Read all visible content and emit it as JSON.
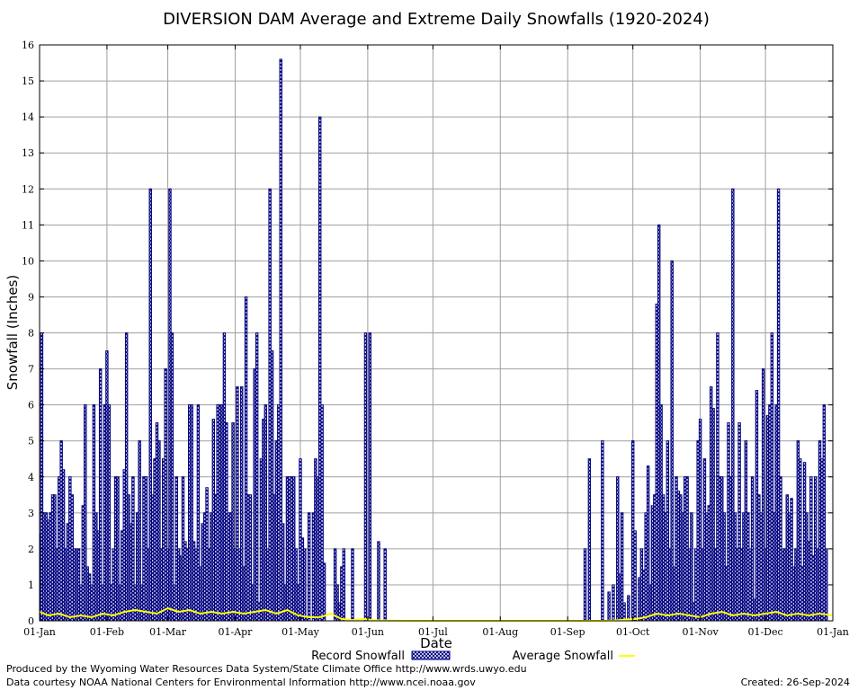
{
  "chart_data": {
    "type": "bar",
    "title": "DIVERSION DAM Average and Extreme Daily Snowfalls (1920-2024)",
    "xlabel": "Date",
    "ylabel": "Snowfall (Inches)",
    "ylim": [
      0,
      16
    ],
    "yticks": [
      0,
      1,
      2,
      3,
      4,
      5,
      6,
      7,
      8,
      9,
      10,
      11,
      12,
      13,
      14,
      15,
      16
    ],
    "xlim_days": [
      1,
      366
    ],
    "xticks": [
      {
        "label": "01-Jan",
        "day": 1
      },
      {
        "label": "01-Feb",
        "day": 32
      },
      {
        "label": "01-Mar",
        "day": 60
      },
      {
        "label": "01-Apr",
        "day": 91
      },
      {
        "label": "01-May",
        "day": 121
      },
      {
        "label": "01-Jun",
        "day": 152
      },
      {
        "label": "01-Jul",
        "day": 182
      },
      {
        "label": "01-Aug",
        "day": 213
      },
      {
        "label": "01-Sep",
        "day": 244
      },
      {
        "label": "01-Oct",
        "day": 274
      },
      {
        "label": "01-Nov",
        "day": 305
      },
      {
        "label": "01-Dec",
        "day": 335
      },
      {
        "label": "01-Jan",
        "day": 366
      }
    ],
    "grid": true,
    "legend_position": "bottom",
    "series": [
      {
        "name": "Record Snowfall",
        "style": "bar",
        "color": "#000080",
        "fill_pattern": "crosshatch",
        "x_day_of_year": [
          1,
          2,
          3,
          4,
          5,
          6,
          7,
          8,
          9,
          10,
          11,
          12,
          13,
          14,
          15,
          16,
          17,
          18,
          19,
          20,
          21,
          22,
          23,
          24,
          25,
          26,
          27,
          28,
          29,
          30,
          31,
          32,
          33,
          34,
          35,
          36,
          37,
          38,
          39,
          40,
          41,
          42,
          43,
          44,
          45,
          46,
          47,
          48,
          49,
          50,
          51,
          52,
          53,
          54,
          55,
          56,
          57,
          58,
          59,
          60,
          61,
          62,
          63,
          64,
          65,
          66,
          67,
          68,
          69,
          70,
          71,
          72,
          73,
          74,
          75,
          76,
          77,
          78,
          79,
          80,
          81,
          82,
          83,
          84,
          85,
          86,
          87,
          88,
          89,
          90,
          91,
          92,
          93,
          94,
          95,
          96,
          97,
          98,
          99,
          100,
          101,
          102,
          103,
          104,
          105,
          106,
          107,
          108,
          109,
          110,
          111,
          112,
          113,
          114,
          115,
          116,
          117,
          118,
          119,
          120,
          121,
          122,
          123,
          124,
          125,
          126,
          127,
          128,
          129,
          130,
          131,
          132,
          133,
          134,
          135,
          136,
          137,
          138,
          139,
          140,
          141,
          142,
          143,
          144,
          145,
          146,
          147,
          148,
          149,
          150,
          151,
          152,
          153,
          154,
          155,
          156,
          157,
          158,
          159,
          160,
          161,
          162,
          163,
          164,
          165,
          166,
          167,
          168,
          169,
          170,
          171,
          172,
          173,
          174,
          175,
          176,
          177,
          178,
          179,
          180,
          181,
          182,
          183,
          184,
          185,
          186,
          187,
          188,
          189,
          190,
          191,
          192,
          193,
          194,
          195,
          196,
          197,
          198,
          199,
          200,
          201,
          202,
          203,
          204,
          205,
          206,
          207,
          208,
          209,
          210,
          211,
          212,
          213,
          214,
          215,
          216,
          217,
          218,
          219,
          220,
          221,
          222,
          223,
          224,
          225,
          226,
          227,
          228,
          229,
          230,
          231,
          232,
          233,
          234,
          235,
          236,
          237,
          238,
          239,
          240,
          241,
          242,
          243,
          244,
          245,
          246,
          247,
          248,
          249,
          250,
          251,
          252,
          253,
          254,
          255,
          256,
          257,
          258,
          259,
          260,
          261,
          262,
          263,
          264,
          265,
          266,
          267,
          268,
          269,
          270,
          271,
          272,
          273,
          274,
          275,
          276,
          277,
          278,
          279,
          280,
          281,
          282,
          283,
          284,
          285,
          286,
          287,
          288,
          289,
          290,
          291,
          292,
          293,
          294,
          295,
          296,
          297,
          298,
          299,
          300,
          301,
          302,
          303,
          304,
          305,
          306,
          307,
          308,
          309,
          310,
          311,
          312,
          313,
          314,
          315,
          316,
          317,
          318,
          319,
          320,
          321,
          322,
          323,
          324,
          325,
          326,
          327,
          328,
          329,
          330,
          331,
          332,
          333,
          334,
          335,
          336,
          337,
          338,
          339,
          340,
          341,
          342,
          343,
          344,
          345,
          346,
          347,
          348,
          349,
          350,
          351,
          352,
          353,
          354,
          355,
          356,
          357,
          358,
          359,
          360,
          361,
          362,
          363,
          364,
          365,
          366
        ],
        "values": [
          2.4,
          8,
          3,
          3,
          2.8,
          3,
          3.5,
          3.5,
          2,
          4,
          5,
          4.2,
          2,
          2.7,
          4,
          3.5,
          2,
          2,
          2,
          1,
          3.2,
          6,
          1.5,
          1.3,
          1,
          6,
          3,
          2.5,
          7,
          1,
          6,
          7.5,
          6,
          1,
          2,
          4,
          4,
          1,
          2.5,
          4.2,
          8,
          3.5,
          2.7,
          4,
          1,
          3,
          5,
          1,
          4,
          4,
          2,
          12,
          3.5,
          4.5,
          5.5,
          5,
          2,
          4.5,
          7,
          2,
          12,
          8,
          1,
          4,
          2,
          1.8,
          4,
          2.2,
          2,
          6,
          6,
          2.2,
          2,
          6,
          1.5,
          2.7,
          3,
          3.7,
          2,
          3,
          5.6,
          3.5,
          6,
          6,
          6,
          8,
          5.5,
          3,
          3,
          5.5,
          2,
          6.5,
          2,
          6.5,
          1.5,
          9,
          3.5,
          3.5,
          1,
          7,
          8,
          0.5,
          4.5,
          5.6,
          6,
          2,
          12,
          7.5,
          3.5,
          5,
          6,
          15.6,
          2.7,
          1,
          4,
          4,
          4,
          4,
          2,
          1,
          4.5,
          2.3,
          2,
          0.1,
          3,
          0,
          3,
          4.5,
          4,
          14,
          6,
          1.6,
          0,
          0,
          0,
          0,
          2,
          1,
          0.5,
          1.5,
          2,
          0,
          0,
          0,
          2,
          0,
          0,
          0,
          0,
          0,
          8,
          0,
          8,
          0,
          0,
          0,
          2.2,
          0,
          0,
          2,
          0,
          0,
          0,
          0,
          0,
          0,
          0,
          0,
          0,
          0,
          0,
          0,
          0,
          0,
          0,
          0,
          0,
          0,
          0,
          0,
          0,
          0,
          0,
          0,
          0,
          0,
          0,
          0,
          0,
          0,
          0,
          0,
          0,
          0,
          0,
          0,
          0,
          0,
          0,
          0,
          0,
          0,
          0,
          0,
          0,
          0,
          0,
          0,
          0,
          0,
          0,
          0,
          0,
          0,
          0,
          0,
          0,
          0,
          0,
          0,
          0,
          0,
          0,
          0,
          0,
          0,
          0,
          0,
          0,
          0,
          0,
          0,
          0,
          0,
          0,
          0,
          0,
          0,
          0,
          0,
          0,
          0,
          0,
          0,
          0,
          0,
          0,
          0,
          0,
          0,
          0,
          2,
          0,
          4.5,
          0,
          0,
          0,
          0,
          0,
          5,
          0,
          0,
          0.8,
          0,
          1,
          0,
          4,
          1.3,
          3,
          0.5,
          0,
          0.7,
          0,
          5,
          2.5,
          0,
          1.2,
          2,
          1.4,
          3,
          4.3,
          1,
          3.2,
          3.5,
          8.8,
          11,
          6,
          3.5,
          3,
          5,
          2,
          10,
          1.5,
          4,
          3.6,
          3.5,
          3,
          4,
          4,
          2,
          3,
          0.5,
          2,
          5,
          5.6,
          2,
          4.5,
          3,
          3.2,
          6.5,
          5.9,
          2,
          8,
          4,
          4,
          3,
          1.5,
          5.5,
          4,
          12,
          3,
          2,
          5.5,
          2,
          3,
          5,
          3,
          2,
          4,
          0.6,
          6.4,
          3.5,
          3,
          7,
          2,
          5.7,
          6,
          8,
          3,
          6,
          12,
          4,
          2,
          2,
          3.5,
          3,
          3.4,
          1.5,
          2,
          5,
          4.5,
          1.5,
          4.4,
          3,
          2.2,
          4,
          1.8,
          4,
          2,
          5,
          4.5,
          6,
          2
        ],
        "comment_missing_days": "Values near 0 across June-August; many summer days show no record snowfall."
      },
      {
        "name": "Average Snowfall",
        "style": "line",
        "color": "#ffff00",
        "x_day_of_year": [
          1,
          5,
          10,
          15,
          20,
          25,
          30,
          35,
          40,
          45,
          50,
          55,
          60,
          65,
          70,
          75,
          80,
          85,
          90,
          95,
          100,
          105,
          110,
          115,
          120,
          125,
          130,
          135,
          140,
          145,
          150,
          155,
          160,
          170,
          200,
          230,
          250,
          260,
          265,
          270,
          275,
          280,
          285,
          290,
          295,
          300,
          305,
          310,
          315,
          320,
          325,
          330,
          335,
          340,
          345,
          350,
          355,
          360,
          366
        ],
        "values": [
          0.25,
          0.15,
          0.2,
          0.1,
          0.15,
          0.1,
          0.2,
          0.15,
          0.25,
          0.3,
          0.25,
          0.2,
          0.35,
          0.25,
          0.3,
          0.2,
          0.25,
          0.2,
          0.25,
          0.2,
          0.25,
          0.3,
          0.2,
          0.3,
          0.15,
          0.1,
          0.1,
          0.2,
          0.05,
          0.02,
          0.05,
          0.02,
          0.01,
          0,
          0,
          0,
          0,
          0,
          0.01,
          0.03,
          0.05,
          0.1,
          0.2,
          0.15,
          0.2,
          0.15,
          0.1,
          0.2,
          0.25,
          0.15,
          0.2,
          0.15,
          0.2,
          0.25,
          0.15,
          0.2,
          0.15,
          0.2,
          0.15
        ]
      }
    ]
  },
  "legend": {
    "record_label": "Record Snowfall",
    "average_label": "Average Snowfall"
  },
  "footer": {
    "producer": "Produced by the Wyoming Water Resources Data System/State Climate Office http://www.wrds.uwyo.edu",
    "courtesy": "Data courtesy NOAA National Centers for Environmental Information http://www.ncei.noaa.gov",
    "created": "Created:  26-Sep-2024"
  }
}
